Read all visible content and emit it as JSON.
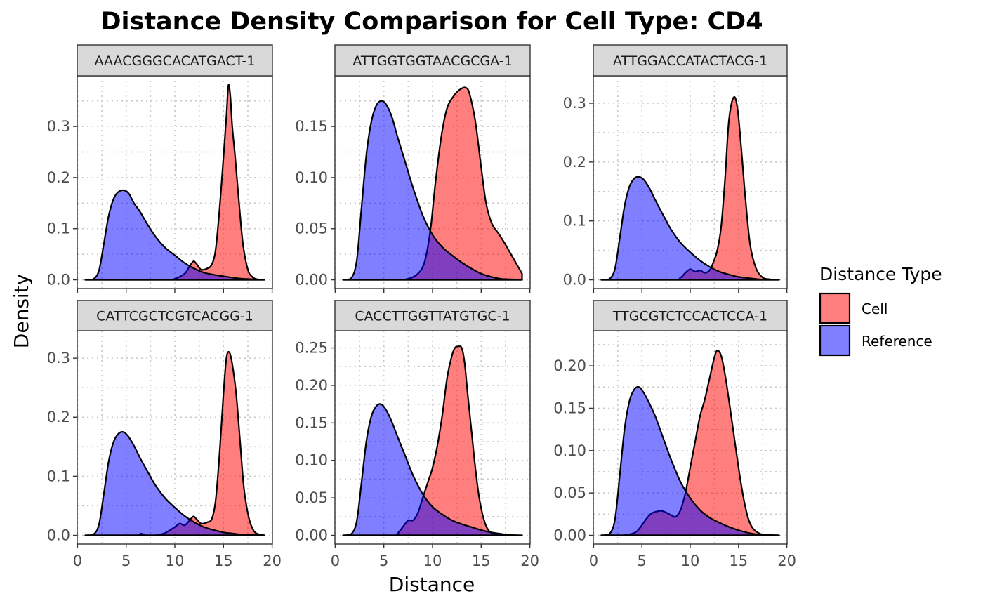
{
  "chart_data": {
    "type": "area",
    "subtype": "density facet grid",
    "title": "Distance Density Comparison for Cell Type: CD4",
    "xlabel": "Distance",
    "ylabel": "Density",
    "xlim": [
      0,
      20
    ],
    "x_ticks": [
      0,
      5,
      10,
      15,
      20
    ],
    "grid": "dotted",
    "legend": {
      "title": "Distance Type",
      "placement": "right",
      "entries": [
        {
          "label": "Cell",
          "color": "#ff0000",
          "fill_alpha": 0.5
        },
        {
          "label": "Reference",
          "color": "#0000ff",
          "fill_alpha": 0.5
        }
      ]
    },
    "facets": [
      {
        "label": "AAACGGGCACATGACT-1",
        "ylim": [
          0,
          0.38
        ],
        "y_ticks": [
          0,
          0.1,
          0.2,
          0.3
        ],
        "y_tick_labels": [
          "0.0",
          "0.1",
          "0.2",
          "0.3"
        ],
        "series": [
          {
            "name": "Cell",
            "x": [
              0.8,
              9,
              10,
              11,
              11.5,
              11.9,
              12.2,
              12.7,
              13.3,
              13.8,
              14.2,
              14.6,
              15.0,
              15.3,
              15.5,
              15.7,
              15.9,
              16.2,
              16.6,
              17.0,
              17.5,
              18.0,
              18.5,
              19.2
            ],
            "y": [
              0,
              0,
              0.002,
              0.012,
              0.026,
              0.036,
              0.032,
              0.02,
              0.022,
              0.03,
              0.06,
              0.14,
              0.24,
              0.32,
              0.38,
              0.36,
              0.3,
              0.24,
              0.15,
              0.07,
              0.02,
              0.005,
              0.001,
              0
            ]
          },
          {
            "name": "Reference",
            "x": [
              0.8,
              1.6,
              2.2,
              2.7,
              3.2,
              3.7,
              4.2,
              4.8,
              5.3,
              5.8,
              6.4,
              7.2,
              8.0,
              9.0,
              10.0,
              11.0,
              12.0,
              13.0,
              14.0,
              15.0,
              16.0,
              17.0,
              18.0,
              19.2
            ],
            "y": [
              0,
              0.001,
              0.018,
              0.07,
              0.125,
              0.158,
              0.172,
              0.175,
              0.168,
              0.15,
              0.134,
              0.108,
              0.085,
              0.063,
              0.048,
              0.033,
              0.022,
              0.014,
              0.01,
              0.007,
              0.004,
              0.002,
              0.001,
              0
            ]
          }
        ]
      },
      {
        "label": "ATTGGTGGTAACGCGA-1",
        "ylim": [
          0,
          0.19
        ],
        "y_ticks": [
          0,
          0.05,
          0.1,
          0.15
        ],
        "y_tick_labels": [
          "0.00",
          "0.05",
          "0.10",
          "0.15"
        ],
        "series": [
          {
            "name": "Cell",
            "x": [
              0.8,
              6,
              7.5,
              8.5,
              9.2,
              9.8,
              10.3,
              10.9,
              11.5,
              12.2,
              12.8,
              13.4,
              13.8,
              14.4,
              15.0,
              15.5,
              16.1,
              16.8,
              17.4,
              18.0,
              18.6,
              19.2
            ],
            "y": [
              0,
              0,
              0.001,
              0.006,
              0.018,
              0.05,
              0.095,
              0.14,
              0.168,
              0.18,
              0.186,
              0.188,
              0.182,
              0.155,
              0.11,
              0.075,
              0.055,
              0.045,
              0.036,
              0.026,
              0.016,
              0.006
            ]
          },
          {
            "name": "Reference",
            "x": [
              0.8,
              1.6,
              2.2,
              2.7,
              3.2,
              3.7,
              4.2,
              4.7,
              5.2,
              5.8,
              6.4,
              7.2,
              8.0,
              9.0,
              10.0,
              11.0,
              12.0,
              13.0,
              14.0,
              15.0,
              16.0,
              17.0,
              18.0,
              19.2
            ],
            "y": [
              0,
              0.001,
              0.018,
              0.07,
              0.122,
              0.154,
              0.17,
              0.175,
              0.172,
              0.16,
              0.14,
              0.115,
              0.09,
              0.063,
              0.044,
              0.032,
              0.024,
              0.017,
              0.011,
              0.006,
              0.003,
              0.001,
              0.0005,
              0
            ]
          }
        ]
      },
      {
        "label": "ATTGGACCATACTACG-1",
        "ylim": [
          0,
          0.33
        ],
        "y_ticks": [
          0,
          0.1,
          0.2,
          0.3
        ],
        "y_tick_labels": [
          "0.0",
          "0.1",
          "0.2",
          "0.3"
        ],
        "series": [
          {
            "name": "Cell",
            "x": [
              0.8,
              8,
              9,
              9.5,
              10,
              10.5,
              11,
              11.5,
              12,
              12.4,
              12.8,
              13.2,
              13.6,
              14.0,
              14.5,
              14.9,
              15.3,
              15.7,
              16.2,
              16.8,
              17.5,
              18.2,
              19.2
            ],
            "y": [
              0,
              0,
              0.004,
              0.012,
              0.018,
              0.014,
              0.016,
              0.012,
              0.016,
              0.03,
              0.05,
              0.09,
              0.17,
              0.27,
              0.31,
              0.29,
              0.22,
              0.14,
              0.06,
              0.02,
              0.004,
              0.001,
              0
            ]
          },
          {
            "name": "Reference",
            "x": [
              0.8,
              1.6,
              2.2,
              2.7,
              3.2,
              3.7,
              4.2,
              4.7,
              5.2,
              5.8,
              6.4,
              7.2,
              8.0,
              9.0,
              10.0,
              11.0,
              12.0,
              13.0,
              14.0,
              15.0,
              16.0,
              17.0,
              18.0,
              19.2
            ],
            "y": [
              0,
              0.001,
              0.018,
              0.07,
              0.125,
              0.158,
              0.172,
              0.175,
              0.17,
              0.155,
              0.135,
              0.11,
              0.086,
              0.063,
              0.047,
              0.033,
              0.022,
              0.014,
              0.009,
              0.005,
              0.003,
              0.001,
              0.0005,
              0
            ]
          }
        ]
      },
      {
        "label": "CATTCGCTCGTCACGG-1",
        "ylim": [
          0,
          0.33
        ],
        "y_ticks": [
          0,
          0.1,
          0.2,
          0.3
        ],
        "y_tick_labels": [
          "0.0",
          "0.1",
          "0.2",
          "0.3"
        ],
        "series": [
          {
            "name": "Cell",
            "x": [
              0.8,
              6,
              6.5,
              7,
              7.5,
              8,
              9,
              10,
              10.5,
              11,
              11.5,
              11.9,
              12.2,
              12.7,
              13.3,
              13.8,
              14.2,
              14.6,
              15.0,
              15.3,
              15.6,
              15.9,
              16.3,
              16.7,
              17.1,
              17.6,
              18.1,
              18.6,
              19.2
            ],
            "y": [
              0,
              0,
              0.003,
              0,
              0,
              0,
              0.004,
              0.014,
              0.02,
              0.017,
              0.025,
              0.032,
              0.028,
              0.02,
              0.022,
              0.028,
              0.06,
              0.14,
              0.24,
              0.3,
              0.31,
              0.29,
              0.24,
              0.16,
              0.08,
              0.03,
              0.008,
              0.002,
              0
            ]
          },
          {
            "name": "Reference",
            "x": [
              0.8,
              1.6,
              2.2,
              2.7,
              3.2,
              3.7,
              4.2,
              4.7,
              5.2,
              5.8,
              6.4,
              7.2,
              8.0,
              9.0,
              10.0,
              11.0,
              12.0,
              13.0,
              14.0,
              15.0,
              16.0,
              17.0,
              18.0,
              19.2
            ],
            "y": [
              0,
              0.001,
              0.018,
              0.07,
              0.125,
              0.158,
              0.172,
              0.175,
              0.168,
              0.152,
              0.132,
              0.108,
              0.085,
              0.063,
              0.047,
              0.033,
              0.022,
              0.014,
              0.009,
              0.005,
              0.003,
              0.001,
              0.0005,
              0
            ]
          }
        ]
      },
      {
        "label": "CACCTTGGTTATGTGC-1",
        "ylim": [
          0,
          0.26
        ],
        "y_ticks": [
          0,
          0.05,
          0.1,
          0.15,
          0.2,
          0.25
        ],
        "y_tick_labels": [
          "0.00",
          "0.05",
          "0.10",
          "0.15",
          "0.20",
          "0.25"
        ],
        "series": [
          {
            "name": "Cell",
            "x": [
              0.8,
              6,
              6.5,
              7,
              7.5,
              8,
              8.5,
              9,
              9.5,
              10,
              10.5,
              11,
              11.5,
              12,
              12.3,
              12.6,
              13,
              13.3,
              13.6,
              14,
              14.4,
              14.8,
              15.3,
              15.8,
              16.5,
              17.2,
              18.0,
              19.2
            ],
            "y": [
              0,
              0,
              0.004,
              0.012,
              0.02,
              0.02,
              0.03,
              0.05,
              0.07,
              0.09,
              0.12,
              0.16,
              0.21,
              0.24,
              0.25,
              0.252,
              0.25,
              0.23,
              0.19,
              0.14,
              0.09,
              0.05,
              0.02,
              0.006,
              0.001,
              0,
              0,
              0
            ]
          },
          {
            "name": "Reference",
            "x": [
              0.8,
              1.6,
              2.2,
              2.7,
              3.2,
              3.7,
              4.2,
              4.7,
              5.2,
              5.8,
              6.4,
              7.2,
              8.0,
              9.0,
              10.0,
              11.0,
              12.0,
              13.0,
              14.0,
              15.0,
              16.0,
              17.0,
              18.0,
              19.2
            ],
            "y": [
              0,
              0.001,
              0.018,
              0.07,
              0.125,
              0.158,
              0.172,
              0.175,
              0.168,
              0.152,
              0.132,
              0.106,
              0.08,
              0.055,
              0.038,
              0.028,
              0.02,
              0.015,
              0.011,
              0.007,
              0.004,
              0.002,
              0.0005,
              0
            ]
          }
        ]
      },
      {
        "label": "TTGCGTCTCCACTCCA-1",
        "ylim": [
          0,
          0.23
        ],
        "y_ticks": [
          0,
          0.05,
          0.1,
          0.15,
          0.2
        ],
        "y_tick_labels": [
          "0.00",
          "0.05",
          "0.10",
          "0.15",
          "0.20"
        ],
        "series": [
          {
            "name": "Cell",
            "x": [
              0.8,
              3,
              4,
              4.5,
              5,
              5.5,
              6,
              6.5,
              7,
              7.5,
              8,
              8.5,
              9,
              9.5,
              10,
              10.5,
              11,
              11.5,
              12,
              12.5,
              12.8,
              13.2,
              13.6,
              14.0,
              14.5,
              15.0,
              15.5,
              16.0,
              16.5,
              17.2,
              18.0,
              19.2
            ],
            "y": [
              0,
              0,
              0.002,
              0.005,
              0.012,
              0.02,
              0.026,
              0.028,
              0.029,
              0.027,
              0.024,
              0.022,
              0.03,
              0.05,
              0.08,
              0.11,
              0.14,
              0.16,
              0.185,
              0.21,
              0.218,
              0.212,
              0.19,
              0.16,
              0.12,
              0.08,
              0.045,
              0.02,
              0.008,
              0.002,
              0,
              0
            ]
          },
          {
            "name": "Reference",
            "x": [
              0.8,
              1.6,
              2.2,
              2.7,
              3.2,
              3.7,
              4.2,
              4.7,
              5.2,
              5.8,
              6.4,
              7.2,
              8.0,
              9.0,
              10.0,
              11.0,
              12.0,
              13.0,
              14.0,
              15.0,
              16.0,
              17.0,
              18.0,
              19.2
            ],
            "y": [
              0,
              0.001,
              0.018,
              0.07,
              0.125,
              0.158,
              0.172,
              0.175,
              0.168,
              0.155,
              0.14,
              0.115,
              0.09,
              0.063,
              0.044,
              0.03,
              0.021,
              0.015,
              0.01,
              0.006,
              0.003,
              0.001,
              0.0005,
              0
            ]
          }
        ]
      }
    ]
  }
}
